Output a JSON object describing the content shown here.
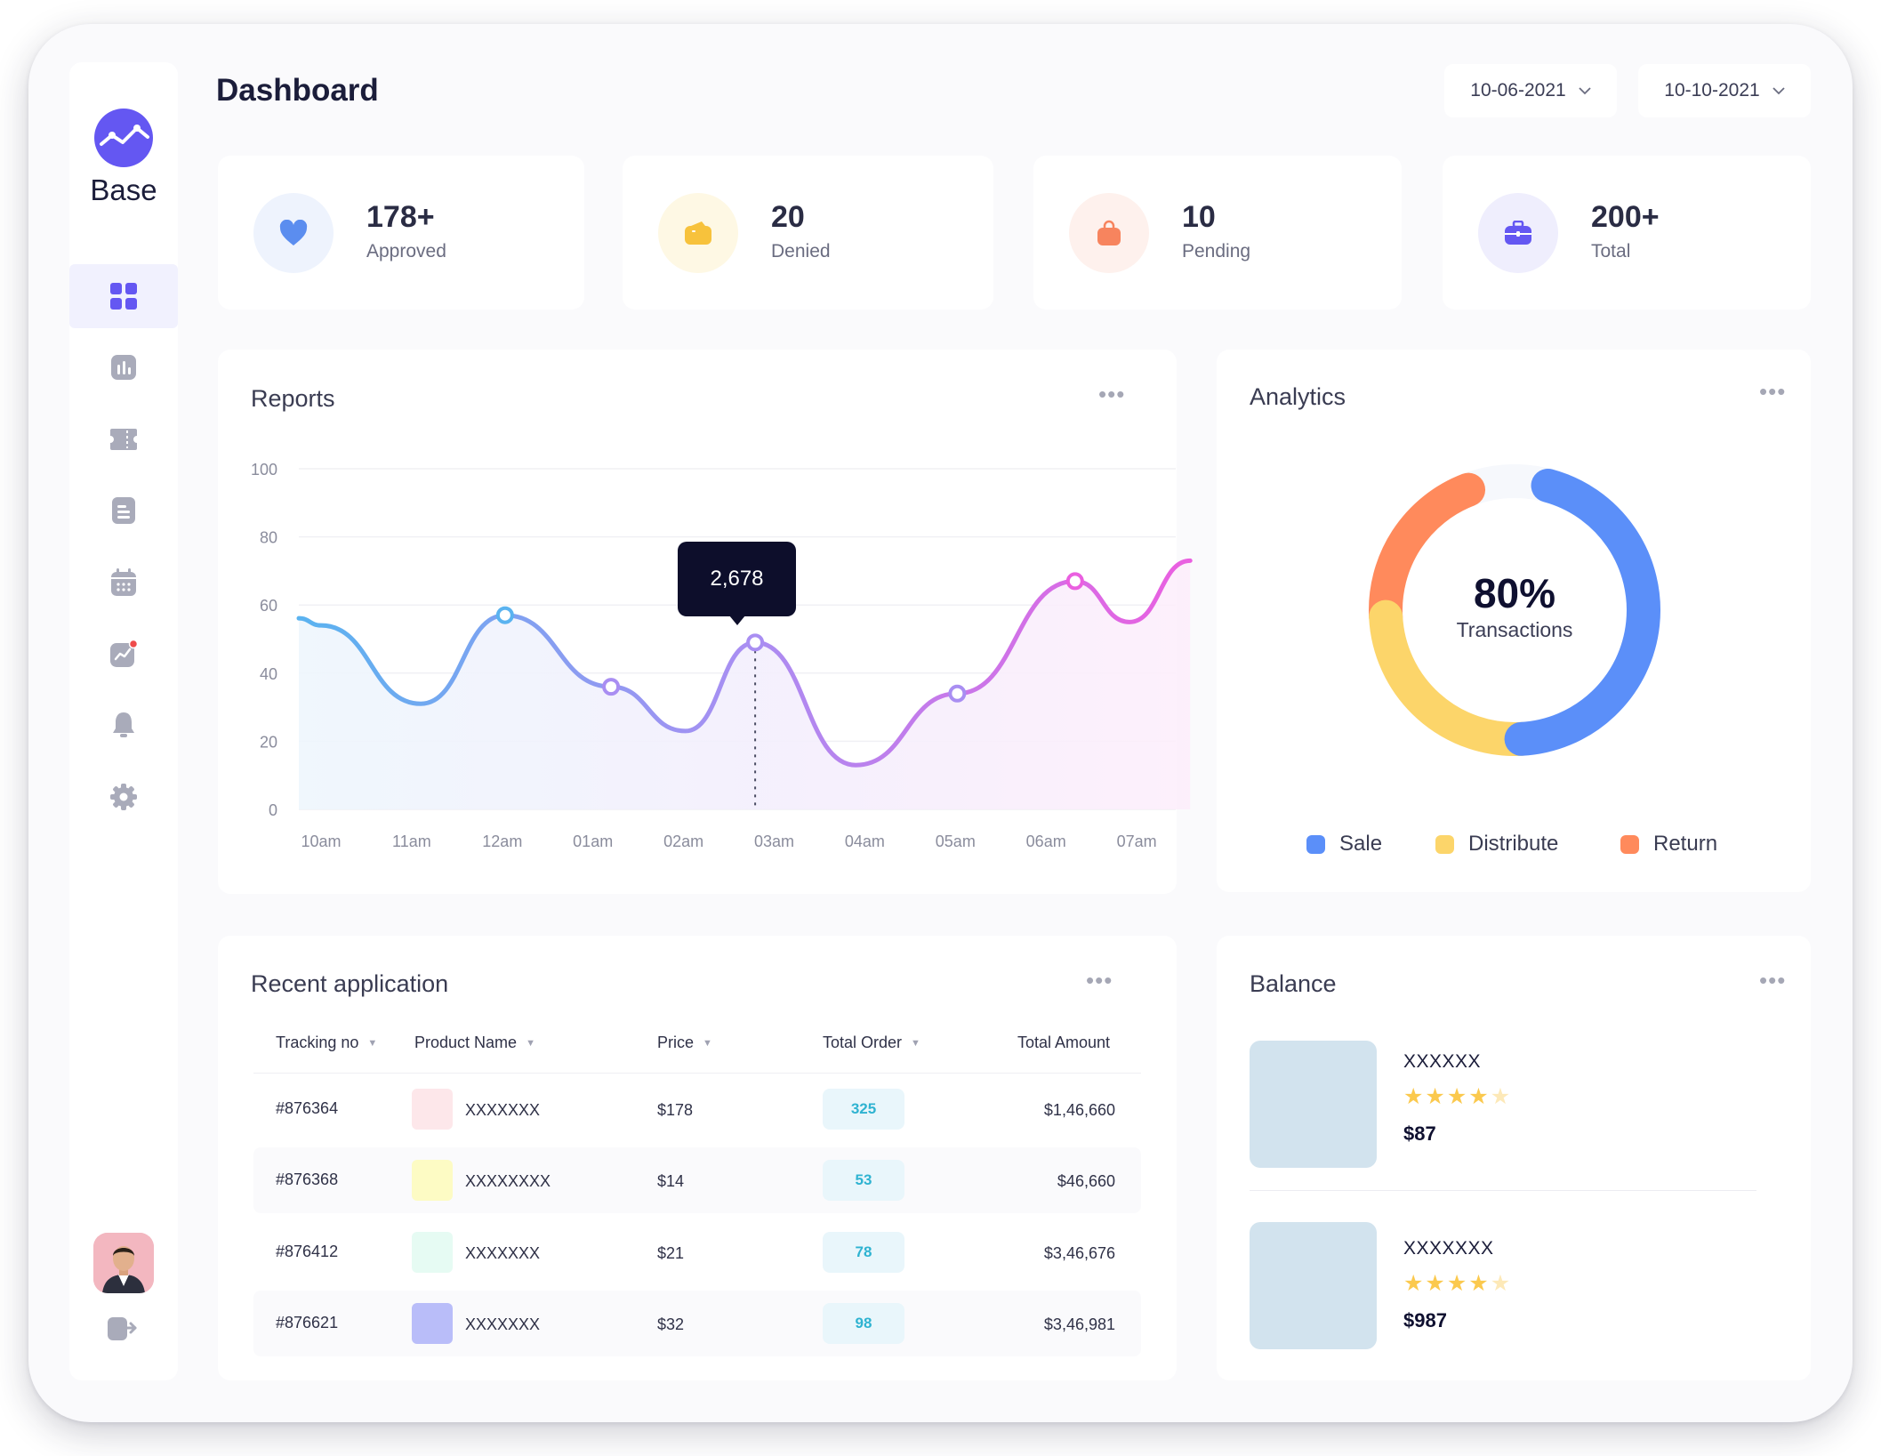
{
  "app": {
    "name": "Base"
  },
  "header": {
    "title": "Dashboard",
    "date_from": "10-06-2021",
    "date_to": "10-10-2021"
  },
  "sidebar": {
    "items": [
      {
        "icon": "grid-icon",
        "active": true
      },
      {
        "icon": "bar-chart-icon",
        "active": false
      },
      {
        "icon": "ticket-icon",
        "active": false
      },
      {
        "icon": "document-icon",
        "active": false
      },
      {
        "icon": "calendar-icon",
        "active": false
      },
      {
        "icon": "trend-icon",
        "active": false
      },
      {
        "icon": "bell-icon",
        "active": false
      },
      {
        "icon": "gear-icon",
        "active": false
      }
    ]
  },
  "stats": [
    {
      "value": "178+",
      "label": "Approved",
      "icon": "heart-icon",
      "color": "#5b8def"
    },
    {
      "value": "20",
      "label": "Denied",
      "icon": "wallet-icon",
      "color": "#f7c23c"
    },
    {
      "value": "10",
      "label": "Pending",
      "icon": "bag-icon",
      "color": "#f7845e"
    },
    {
      "value": "200+",
      "label": "Total",
      "icon": "briefcase-icon",
      "color": "#6457f2"
    }
  ],
  "reports": {
    "title": "Reports",
    "tooltip": "2,678"
  },
  "chart_data": {
    "type": "line",
    "categories": [
      "10am",
      "11am",
      "12am",
      "01am",
      "02am",
      "03am",
      "04am",
      "05am",
      "06am",
      "07am"
    ],
    "yticks": [
      "100",
      "80",
      "60",
      "40",
      "20",
      "0"
    ],
    "ylim": [
      0,
      100
    ],
    "points": [
      {
        "x": 0.0,
        "y": 54
      },
      {
        "x": 1.1,
        "y": 31
      },
      {
        "x": 2.03,
        "y": 57
      },
      {
        "x": 3.2,
        "y": 36
      },
      {
        "x": 4.02,
        "y": 23
      },
      {
        "x": 4.79,
        "y": 49
      },
      {
        "x": 5.9,
        "y": 13
      },
      {
        "x": 7.02,
        "y": 34
      },
      {
        "x": 8.32,
        "y": 67
      },
      {
        "x": 8.92,
        "y": 55
      },
      {
        "x": 9.59,
        "y": 73
      }
    ],
    "markers": [
      2,
      3,
      5,
      7,
      8
    ],
    "highlight": 5,
    "gradient": [
      "#5ab3f0",
      "#a98ef2",
      "#ea5fe0"
    ]
  },
  "analytics": {
    "title": "Analytics",
    "center_value": "80%",
    "center_label": "Transactions",
    "segments": [
      {
        "name": "Sale",
        "value": 45,
        "color": "#5b8ff9"
      },
      {
        "name": "Distribute",
        "value": 25,
        "color": "#fcd56a"
      },
      {
        "name": "Return",
        "value": 20,
        "color": "#ff8a5c"
      }
    ]
  },
  "recent": {
    "title": "Recent application",
    "columns": [
      "Tracking no",
      "Product Name",
      "Price",
      "Total Order",
      "Total Amount"
    ],
    "rows": [
      {
        "tracking": "#876364",
        "product": "XXXXXXX",
        "price": "$178",
        "orders": "325",
        "amount": "$1,46,660",
        "swatch": "#fde7ea"
      },
      {
        "tracking": "#876368",
        "product": "XXXXXXXX",
        "price": "$14",
        "orders": "53",
        "amount": "$46,660",
        "swatch": "#fdfbc4"
      },
      {
        "tracking": "#876412",
        "product": "XXXXXXX",
        "price": "$21",
        "orders": "78",
        "amount": "$3,46,676",
        "swatch": "#e6fbf3"
      },
      {
        "tracking": "#876621",
        "product": "XXXXXXX",
        "price": "$32",
        "orders": "98",
        "amount": "$3,46,981",
        "swatch": "#b9bdf9"
      }
    ]
  },
  "balance": {
    "title": "Balance",
    "items": [
      {
        "name": "XXXXXX",
        "rating": 4,
        "price": "$87"
      },
      {
        "name": "XXXXXXX",
        "rating": 4,
        "price": "$987"
      }
    ]
  }
}
